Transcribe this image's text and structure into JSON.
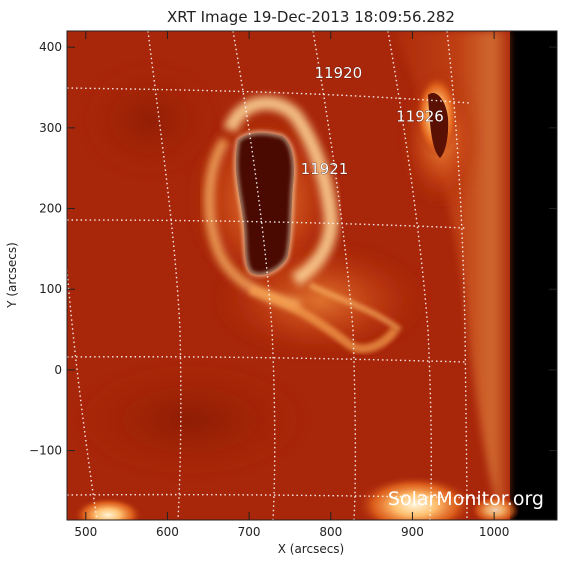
{
  "title": "XRT Image 19-Dec-2013 18:09:56.282",
  "x_axis": {
    "label": "X (arcsecs)",
    "range": [
      477,
      1077
    ],
    "ticks": [
      500,
      600,
      700,
      800,
      900,
      1000
    ]
  },
  "y_axis": {
    "label": "Y (arcsecs)",
    "range": [
      -186,
      420
    ],
    "ticks": [
      -100,
      0,
      100,
      200,
      300,
      400
    ]
  },
  "active_regions": [
    {
      "label": "11920",
      "x": 780,
      "y": 362
    },
    {
      "label": "11926",
      "x": 880,
      "y": 308
    },
    {
      "label": "11921",
      "x": 763,
      "y": 243
    }
  ],
  "watermark": "SolarMonitor.org",
  "colors": {
    "background_disk": "#a8260a",
    "off_limb": "#000000",
    "grid": "#ffffff"
  }
}
